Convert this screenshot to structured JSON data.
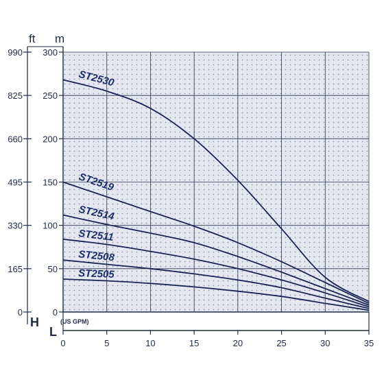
{
  "chart_data": {
    "type": "line",
    "xlabel": "L",
    "xunit": "(US GPM)",
    "ylabel": "H",
    "yunit_left": "ft",
    "yunit_right": "m",
    "xlim": [
      0,
      35
    ],
    "ylim": [
      0,
      300
    ],
    "xticks": [
      "0",
      "5",
      "10",
      "15",
      "20",
      "25",
      "30",
      "35"
    ],
    "yticks_m": [
      "0",
      "50",
      "100",
      "150",
      "200",
      "250",
      "300"
    ],
    "yticks_ft": [
      "0",
      "165",
      "330",
      "495",
      "660",
      "825",
      "990"
    ],
    "grid": true,
    "colors": {
      "curve": "#1a2452",
      "frame": "#1f2a44",
      "plot_bg": "#e4e7f0",
      "grid": "#2b3352",
      "label": "#1a2f6a"
    },
    "series": [
      {
        "name": "ST2530",
        "x": [
          0,
          5,
          10,
          15,
          20,
          25,
          30,
          35
        ],
        "y": [
          268,
          255,
          235,
          200,
          152,
          96,
          40,
          12
        ]
      },
      {
        "name": "ST2519",
        "x": [
          0,
          5,
          10,
          15,
          20,
          25,
          30,
          35
        ],
        "y": [
          150,
          133,
          116,
          99,
          80,
          58,
          34,
          10
        ]
      },
      {
        "name": "ST2514",
        "x": [
          0,
          5,
          10,
          15,
          20,
          25,
          30,
          35
        ],
        "y": [
          112,
          101,
          91,
          80,
          64,
          46,
          27,
          8
        ]
      },
      {
        "name": "ST2511",
        "x": [
          0,
          5,
          10,
          15,
          20,
          25,
          30,
          35
        ],
        "y": [
          84,
          78,
          70,
          61,
          50,
          37,
          22,
          6
        ]
      },
      {
        "name": "ST2508",
        "x": [
          0,
          5,
          10,
          15,
          20,
          25,
          30,
          35
        ],
        "y": [
          60,
          55,
          50,
          44,
          37,
          28,
          16,
          4
        ]
      },
      {
        "name": "ST2505",
        "x": [
          0,
          5,
          10,
          15,
          20,
          25,
          30,
          35
        ],
        "y": [
          38,
          36,
          33,
          29,
          24,
          18,
          10,
          2
        ]
      }
    ]
  }
}
